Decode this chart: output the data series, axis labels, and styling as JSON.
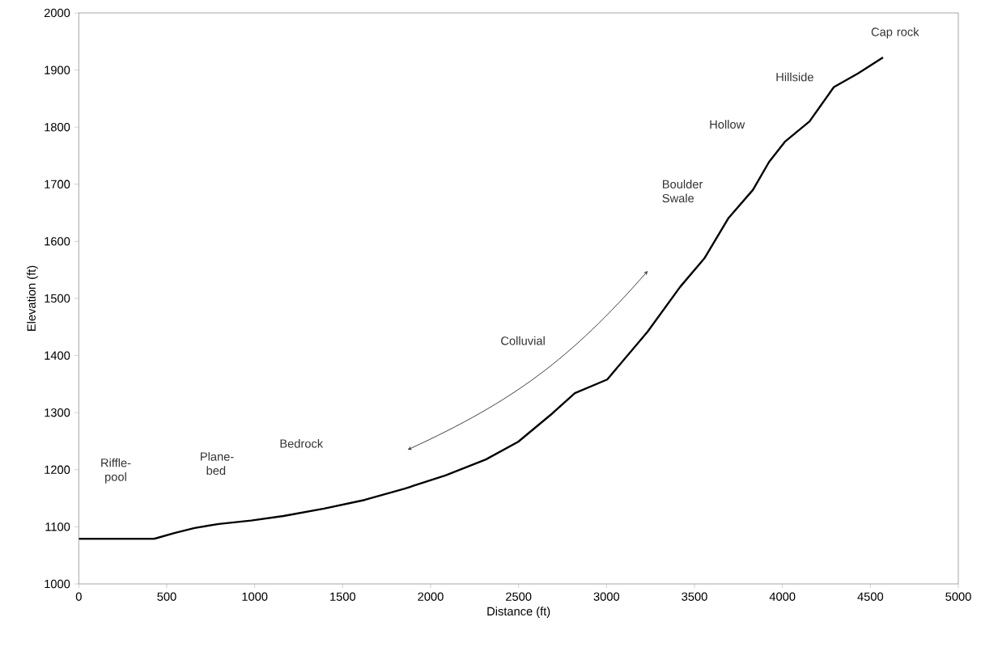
{
  "chart_data": {
    "type": "line",
    "xlabel": "Distance (ft)",
    "ylabel": "Elevation (ft)",
    "x": [
      0,
      428,
      543,
      658,
      796,
      980,
      1164,
      1394,
      1624,
      1854,
      2084,
      2314,
      2498,
      2682,
      2820,
      3004,
      3234,
      3418,
      3556,
      3694,
      3832,
      3924,
      4016,
      4154,
      4292,
      4430,
      4572
    ],
    "series": [
      {
        "color": "#000000",
        "values": [
          1079,
          1079,
          1089,
          1098,
          1105,
          1111,
          1119,
          1132,
          1147,
          1167,
          1190,
          1218,
          1249,
          1296,
          1334,
          1358,
          1442,
          1520,
          1570,
          1641,
          1690,
          1739,
          1775,
          1810,
          1870,
          1894,
          1922
        ]
      }
    ],
    "xlim": [
      0,
      5000
    ],
    "ylim": [
      1000,
      2000
    ],
    "xticks": [
      0,
      500,
      1000,
      1500,
      2000,
      2500,
      3000,
      3500,
      4000,
      4500,
      5000
    ],
    "yticks": [
      1000,
      1100,
      1200,
      1300,
      1400,
      1500,
      1600,
      1700,
      1800,
      1900,
      2000
    ],
    "grid": false,
    "marker": "none",
    "line_style": "solid",
    "annotations": [
      "Riffle-pool",
      "Plane-bed",
      "Bedrock",
      "Colluvial",
      "Boulder Swale",
      "Hollow",
      "Hillside",
      "Cap rock"
    ]
  }
}
